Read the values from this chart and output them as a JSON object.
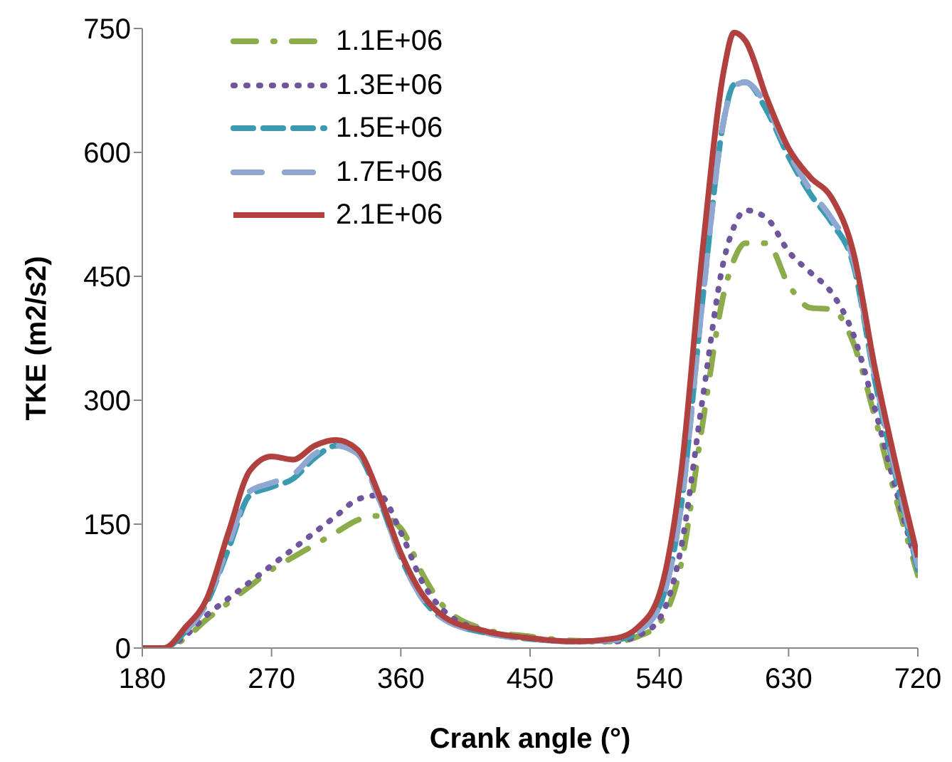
{
  "chart_data": {
    "type": "line",
    "xlabel": "Crank angle (°)",
    "ylabel": "TKE (m2/s2)",
    "x": [
      180,
      195,
      210,
      225,
      240,
      255,
      270,
      285,
      300,
      315,
      330,
      345,
      360,
      375,
      390,
      420,
      450,
      480,
      510,
      525,
      540,
      555,
      570,
      585,
      592,
      600,
      615,
      630,
      645,
      660,
      675,
      690,
      705,
      720
    ],
    "xlim": [
      180,
      720
    ],
    "xticks": [
      180,
      270,
      360,
      450,
      540,
      630,
      720
    ],
    "ylim": [
      0,
      750
    ],
    "yticks": [
      0,
      150,
      300,
      450,
      600,
      750
    ],
    "grid": false,
    "legend": "top left",
    "marker": "none",
    "series": [
      {
        "name": "1.1E+06",
        "color": "#8cac4c",
        "line_style": "dashdot",
        "values": [
          0,
          0,
          12,
          35,
          55,
          75,
          95,
          110,
          125,
          140,
          155,
          160,
          145,
          90,
          50,
          22,
          14,
          9,
          8,
          14,
          30,
          100,
          270,
          430,
          470,
          490,
          490,
          440,
          412,
          410,
          370,
          280,
          180,
          88
        ]
      },
      {
        "name": "1.3E+06",
        "color": "#6e559c",
        "line_style": "dotted",
        "values": [
          0,
          0,
          15,
          40,
          60,
          80,
          100,
          120,
          140,
          160,
          180,
          185,
          140,
          80,
          45,
          20,
          12,
          8,
          8,
          15,
          35,
          120,
          300,
          470,
          510,
          530,
          520,
          480,
          455,
          430,
          380,
          290,
          190,
          95
        ]
      },
      {
        "name": "1.5E+06",
        "color": "#3a9bb0",
        "line_style": "dashed",
        "values": [
          0,
          0,
          20,
          55,
          120,
          185,
          195,
          205,
          230,
          245,
          235,
          180,
          110,
          60,
          35,
          18,
          11,
          8,
          10,
          20,
          50,
          170,
          420,
          640,
          682,
          685,
          650,
          595,
          550,
          515,
          465,
          325,
          205,
          95
        ]
      },
      {
        "name": "1.7E+06",
        "color": "#8ea8d2",
        "line_style": "longdash",
        "values": [
          0,
          0,
          20,
          55,
          125,
          190,
          200,
          210,
          235,
          245,
          235,
          180,
          110,
          60,
          35,
          18,
          11,
          8,
          10,
          20,
          50,
          170,
          420,
          640,
          680,
          685,
          655,
          600,
          555,
          520,
          470,
          330,
          210,
          100
        ]
      },
      {
        "name": "2.1E+06",
        "color": "#b0413e",
        "line_style": "solid",
        "values": [
          0,
          0,
          25,
          60,
          140,
          215,
          232,
          228,
          245,
          252,
          240,
          185,
          115,
          65,
          38,
          20,
          12,
          8,
          12,
          25,
          65,
          210,
          480,
          700,
          745,
          735,
          665,
          605,
          570,
          545,
          480,
          340,
          220,
          110
        ]
      }
    ]
  }
}
